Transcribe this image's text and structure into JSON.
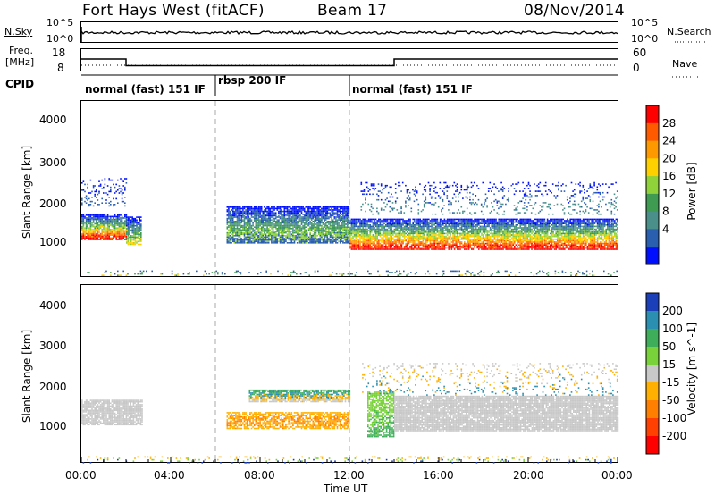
{
  "header": {
    "station": "Fort Hays West (fitACF)",
    "beam": "Beam 17",
    "date": "08/Nov/2014"
  },
  "noise_panel": {
    "left_label": "N.Sky",
    "right_label": "N.Search",
    "left_ticks": [
      "10^5",
      "10^0"
    ],
    "right_ticks": [
      "10^5",
      "10^0"
    ]
  },
  "freq_panel": {
    "left_label_1": "Freq.",
    "left_label_2": "[MHz]",
    "right_label": "Nave",
    "left_ticks": [
      "18",
      "8"
    ],
    "right_ticks": [
      "60",
      "0"
    ]
  },
  "cpid_panel": {
    "label": "CPID",
    "modes": [
      "normal (fast) 151 IF",
      "rbsp 200 IF",
      "normal (fast) 151 IF"
    ]
  },
  "power_panel": {
    "ylabel": "Slant Range [km]",
    "yticks": [
      "4000",
      "3000",
      "2000",
      "1000"
    ],
    "colorbar_label": "Power [dB]",
    "colorbar_ticks": [
      "28",
      "24",
      "20",
      "16",
      "12",
      "8",
      "4"
    ],
    "colors": [
      "#ff0000",
      "#ff5a00",
      "#ff9900",
      "#ffd000",
      "#8fd23a",
      "#3f9a52",
      "#4a8f8a",
      "#2a5fb0",
      "#0010ff"
    ]
  },
  "velocity_panel": {
    "ylabel": "Slant Range [km]",
    "yticks": [
      "4000",
      "3000",
      "2000",
      "1000"
    ],
    "colorbar_label": "Velocity [m s^-1]",
    "colorbar_ticks": [
      "200",
      "100",
      "50",
      "15",
      "-15",
      "-50",
      "-100",
      "-200"
    ],
    "colors": [
      "#1a3fb8",
      "#2a8fb0",
      "#3fae5a",
      "#7ad23a",
      "#c8c8c8",
      "#ffb000",
      "#ff8000",
      "#ff4000",
      "#ff0000"
    ]
  },
  "xaxis": {
    "label": "Time UT",
    "ticks": [
      "00:00",
      "04:00",
      "08:00",
      "12:00",
      "16:00",
      "20:00",
      "00:00"
    ]
  },
  "chart_data": {
    "type": "heatmap",
    "x_unit": "hours UT",
    "xlim": [
      0,
      24
    ],
    "y_unit": "km",
    "ylim": [
      180,
      4500
    ],
    "freq_segments": [
      {
        "start": 0,
        "end": 2,
        "freq_mhz": 14
      },
      {
        "start": 2,
        "end": 14,
        "freq_mhz": 9
      },
      {
        "start": 14,
        "end": 24,
        "freq_mhz": 14
      }
    ],
    "cpid_boundaries": [
      6,
      12
    ],
    "power_echo_bands": [
      {
        "t0": 0,
        "t1": 2,
        "r0": 1100,
        "r1": 1700,
        "level": "high"
      },
      {
        "t0": 2,
        "t1": 2.7,
        "r0": 950,
        "r1": 1650,
        "level": "mid"
      },
      {
        "t0": 6.5,
        "t1": 12,
        "r0": 1000,
        "r1": 1900,
        "level": "low"
      },
      {
        "t0": 12,
        "t1": 24,
        "r0": 850,
        "r1": 1600,
        "level": "high"
      }
    ]
  }
}
